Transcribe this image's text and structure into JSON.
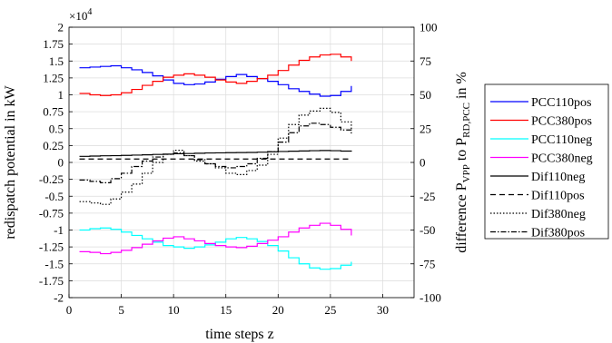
{
  "chart_data": {
    "type": "line",
    "step": true,
    "xlabel": "time steps z",
    "ylabel_left": "redispatch potential in kW",
    "ylabel_right": "difference P_VPP to P_RD,PCC in %",
    "multiplier_label": "×10",
    "multiplier_exp": "4",
    "xlim": [
      0,
      33
    ],
    "ylim_left": [
      -2,
      2
    ],
    "ylim_right": [
      -100,
      100
    ],
    "x_ticks": [
      0,
      5,
      10,
      15,
      20,
      25,
      30
    ],
    "y_left_ticks": [
      "-2",
      "-1.75",
      "-1.5",
      "-1.25",
      "-1",
      "-0.75",
      "-0.5",
      "-0.25",
      "0",
      "0.25",
      "0.5",
      "0.75",
      "1",
      "1.25",
      "1.5",
      "1.75",
      "2"
    ],
    "y_right_ticks": [
      "-100",
      "-75",
      "-50",
      "-25",
      "0",
      "25",
      "50",
      "75",
      "100"
    ],
    "grid": true,
    "legend_position": "outside-right",
    "x": [
      1,
      2,
      3,
      4,
      5,
      6,
      7,
      8,
      9,
      10,
      11,
      12,
      13,
      14,
      15,
      16,
      17,
      18,
      19,
      20,
      21,
      22,
      23,
      24,
      25,
      26,
      27
    ],
    "series": [
      {
        "name": "PCC110pos",
        "axis": "left",
        "color": "#0000ff",
        "dash": "",
        "values": [
          1.4,
          1.41,
          1.42,
          1.43,
          1.4,
          1.37,
          1.33,
          1.28,
          1.22,
          1.17,
          1.15,
          1.16,
          1.19,
          1.23,
          1.27,
          1.3,
          1.27,
          1.24,
          1.2,
          1.15,
          1.09,
          1.05,
          1.01,
          0.98,
          0.99,
          1.05,
          1.13
        ]
      },
      {
        "name": "PCC380pos",
        "axis": "left",
        "color": "#ff0000",
        "dash": "",
        "values": [
          1.02,
          1.0,
          0.99,
          1.0,
          1.03,
          1.08,
          1.14,
          1.2,
          1.26,
          1.29,
          1.31,
          1.29,
          1.26,
          1.22,
          1.19,
          1.17,
          1.2,
          1.24,
          1.29,
          1.36,
          1.44,
          1.51,
          1.56,
          1.59,
          1.6,
          1.56,
          1.5
        ]
      },
      {
        "name": "PCC110neg",
        "axis": "left",
        "color": "#00ffff",
        "dash": "",
        "values": [
          -1.0,
          -0.98,
          -0.97,
          -0.99,
          -1.03,
          -1.08,
          -1.13,
          -1.18,
          -1.23,
          -1.25,
          -1.27,
          -1.25,
          -1.22,
          -1.18,
          -1.13,
          -1.11,
          -1.13,
          -1.17,
          -1.23,
          -1.31,
          -1.41,
          -1.5,
          -1.56,
          -1.58,
          -1.57,
          -1.52,
          -1.47
        ]
      },
      {
        "name": "PCC380neg",
        "axis": "left",
        "color": "#ff00ff",
        "dash": "",
        "values": [
          -1.32,
          -1.33,
          -1.35,
          -1.33,
          -1.3,
          -1.26,
          -1.21,
          -1.16,
          -1.12,
          -1.1,
          -1.13,
          -1.16,
          -1.2,
          -1.23,
          -1.25,
          -1.26,
          -1.24,
          -1.2,
          -1.15,
          -1.1,
          -1.03,
          -0.97,
          -0.93,
          -0.9,
          -0.93,
          -0.99,
          -1.08
        ]
      },
      {
        "name": "Dif110neg",
        "axis": "right",
        "color": "#000000",
        "dash": "",
        "values": [
          4.5,
          4.7,
          4.9,
          5.0,
          5.2,
          5.4,
          5.6,
          5.9,
          6.1,
          6.4,
          6.6,
          6.8,
          7.0,
          7.1,
          7.2,
          7.3,
          7.4,
          7.6,
          7.9,
          8.1,
          8.3,
          8.5,
          8.7,
          8.8,
          8.7,
          8.4,
          8.0
        ]
      },
      {
        "name": "Dif110pos",
        "axis": "right",
        "color": "#000000",
        "dash": "6,4",
        "values": [
          2.5,
          2.5,
          2.5,
          2.5,
          2.5,
          2.5,
          2.5,
          2.5,
          2.5,
          2.5,
          2.5,
          2.5,
          2.5,
          2.5,
          2.5,
          2.5,
          2.5,
          2.5,
          2.5,
          2.5,
          2.5,
          2.5,
          2.5,
          2.5,
          2.5,
          2.5,
          2.5
        ]
      },
      {
        "name": "Dif380neg",
        "axis": "right",
        "color": "#000000",
        "dash": "1.5,2",
        "values": [
          -29,
          -30,
          -31,
          -27,
          -22,
          -16,
          -8,
          0,
          6,
          9,
          5,
          1,
          -1,
          -4,
          -8,
          -9,
          -6,
          -2,
          6,
          18,
          28,
          35,
          38,
          40,
          37,
          30,
          24
        ]
      },
      {
        "name": "Dif380pos",
        "axis": "right",
        "color": "#000000",
        "dash": "6,2,1.5,2",
        "values": [
          -13,
          -14,
          -15,
          -12,
          -8,
          -3,
          1,
          4,
          6,
          7,
          5,
          2,
          -1,
          -3,
          -4,
          -3,
          -1,
          3,
          8,
          15,
          22,
          27,
          29,
          28,
          26,
          24,
          21
        ]
      }
    ]
  }
}
